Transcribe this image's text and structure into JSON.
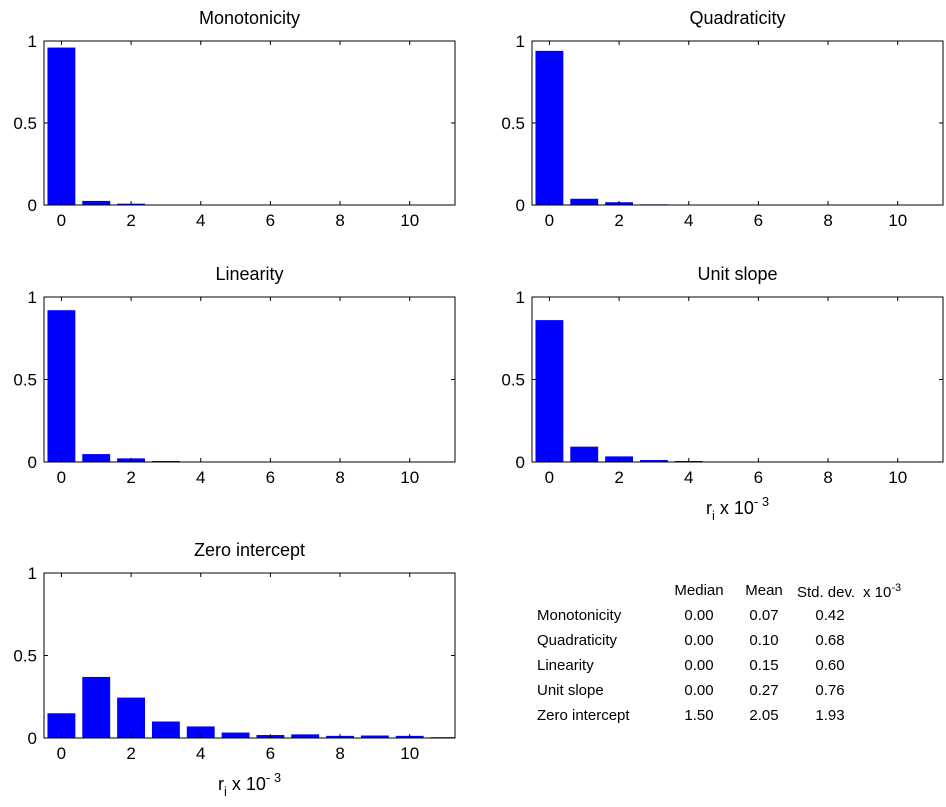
{
  "chart_data": [
    {
      "type": "bar",
      "title": "Monotonicity",
      "x": [
        0,
        1,
        2,
        3,
        4,
        5,
        6,
        7,
        8,
        9,
        10,
        11
      ],
      "values": [
        0.96,
        0.025,
        0.008,
        0.003,
        0.002,
        0.001,
        0.001,
        0.001,
        0.001,
        0.001,
        0.001,
        0.001
      ],
      "xlim": [
        -0.5,
        11.3
      ],
      "ylim": [
        0,
        1
      ],
      "xticks": [
        "0",
        "2",
        "4",
        "6",
        "8",
        "10"
      ],
      "yticks": [
        "0",
        "0.5",
        "1"
      ],
      "xlabel": "",
      "ylabel": ""
    },
    {
      "type": "bar",
      "title": "Quadraticity",
      "x": [
        0,
        1,
        2,
        3,
        4,
        5,
        6,
        7,
        8,
        9,
        10,
        11
      ],
      "values": [
        0.94,
        0.038,
        0.017,
        0.004,
        0.002,
        0.001,
        0.001,
        0.001,
        0.001,
        0.001,
        0.001,
        0.001
      ],
      "xlim": [
        -0.5,
        11.3
      ],
      "ylim": [
        0,
        1
      ],
      "xticks": [
        "0",
        "2",
        "4",
        "6",
        "8",
        "10"
      ],
      "yticks": [
        "0",
        "0.5",
        "1"
      ],
      "xlabel": "",
      "ylabel": ""
    },
    {
      "type": "bar",
      "title": "Linearity",
      "x": [
        0,
        1,
        2,
        3,
        4,
        5,
        6,
        7,
        8,
        9,
        10,
        11
      ],
      "values": [
        0.92,
        0.048,
        0.022,
        0.006,
        0.003,
        0.002,
        0.001,
        0.001,
        0.001,
        0.001,
        0.001,
        0.001
      ],
      "xlim": [
        -0.5,
        11.3
      ],
      "ylim": [
        0,
        1
      ],
      "xticks": [
        "0",
        "2",
        "4",
        "6",
        "8",
        "10"
      ],
      "yticks": [
        "0",
        "0.5",
        "1"
      ],
      "xlabel": "",
      "ylabel": ""
    },
    {
      "type": "bar",
      "title": "Unit slope",
      "x": [
        0,
        1,
        2,
        3,
        4,
        5,
        6,
        7,
        8,
        9,
        10,
        11
      ],
      "values": [
        0.86,
        0.093,
        0.034,
        0.012,
        0.006,
        0.003,
        0.002,
        0.001,
        0.001,
        0.001,
        0.001,
        0.001
      ],
      "xlim": [
        -0.5,
        11.3
      ],
      "ylim": [
        0,
        1
      ],
      "xticks": [
        "0",
        "2",
        "4",
        "6",
        "8",
        "10"
      ],
      "yticks": [
        "0",
        "0.5",
        "1"
      ],
      "xlabel": "r_i x 10^-3",
      "xlabel_base": "r",
      "xlabel_sub": "i",
      "xlabel_mid": " x 10",
      "xlabel_sup": "- 3",
      "ylabel": ""
    },
    {
      "type": "bar",
      "title": "Zero intercept",
      "x": [
        0,
        1,
        2,
        3,
        4,
        5,
        6,
        7,
        8,
        9,
        10,
        11
      ],
      "values": [
        0.15,
        0.37,
        0.245,
        0.1,
        0.07,
        0.033,
        0.018,
        0.022,
        0.013,
        0.015,
        0.013,
        0.005
      ],
      "xlim": [
        -0.5,
        11.3
      ],
      "ylim": [
        0,
        1
      ],
      "xticks": [
        "0",
        "2",
        "4",
        "6",
        "8",
        "10"
      ],
      "yticks": [
        "0",
        "0.5",
        "1"
      ],
      "xlabel": "r_i x 10^-3",
      "xlabel_base": "r",
      "xlabel_sub": "i",
      "xlabel_mid": " x 10",
      "xlabel_sup": "- 3",
      "ylabel": ""
    }
  ],
  "bar_color": "#0000ff",
  "stats_table": {
    "headers": [
      "Median",
      "Mean",
      "Std. dev."
    ],
    "scale_label": "x 10",
    "scale_sup": "-3",
    "rows": [
      {
        "name": "Monotonicity",
        "values": [
          "0.00",
          "0.07",
          "0.42"
        ]
      },
      {
        "name": "Quadraticity",
        "values": [
          "0.00",
          "0.10",
          "0.68"
        ]
      },
      {
        "name": "Linearity",
        "values": [
          "0.00",
          "0.15",
          "0.60"
        ]
      },
      {
        "name": "Unit slope",
        "values": [
          "0.00",
          "0.27",
          "0.76"
        ]
      },
      {
        "name": "Zero intercept",
        "values": [
          "1.50",
          "2.05",
          "1.93"
        ]
      }
    ]
  }
}
